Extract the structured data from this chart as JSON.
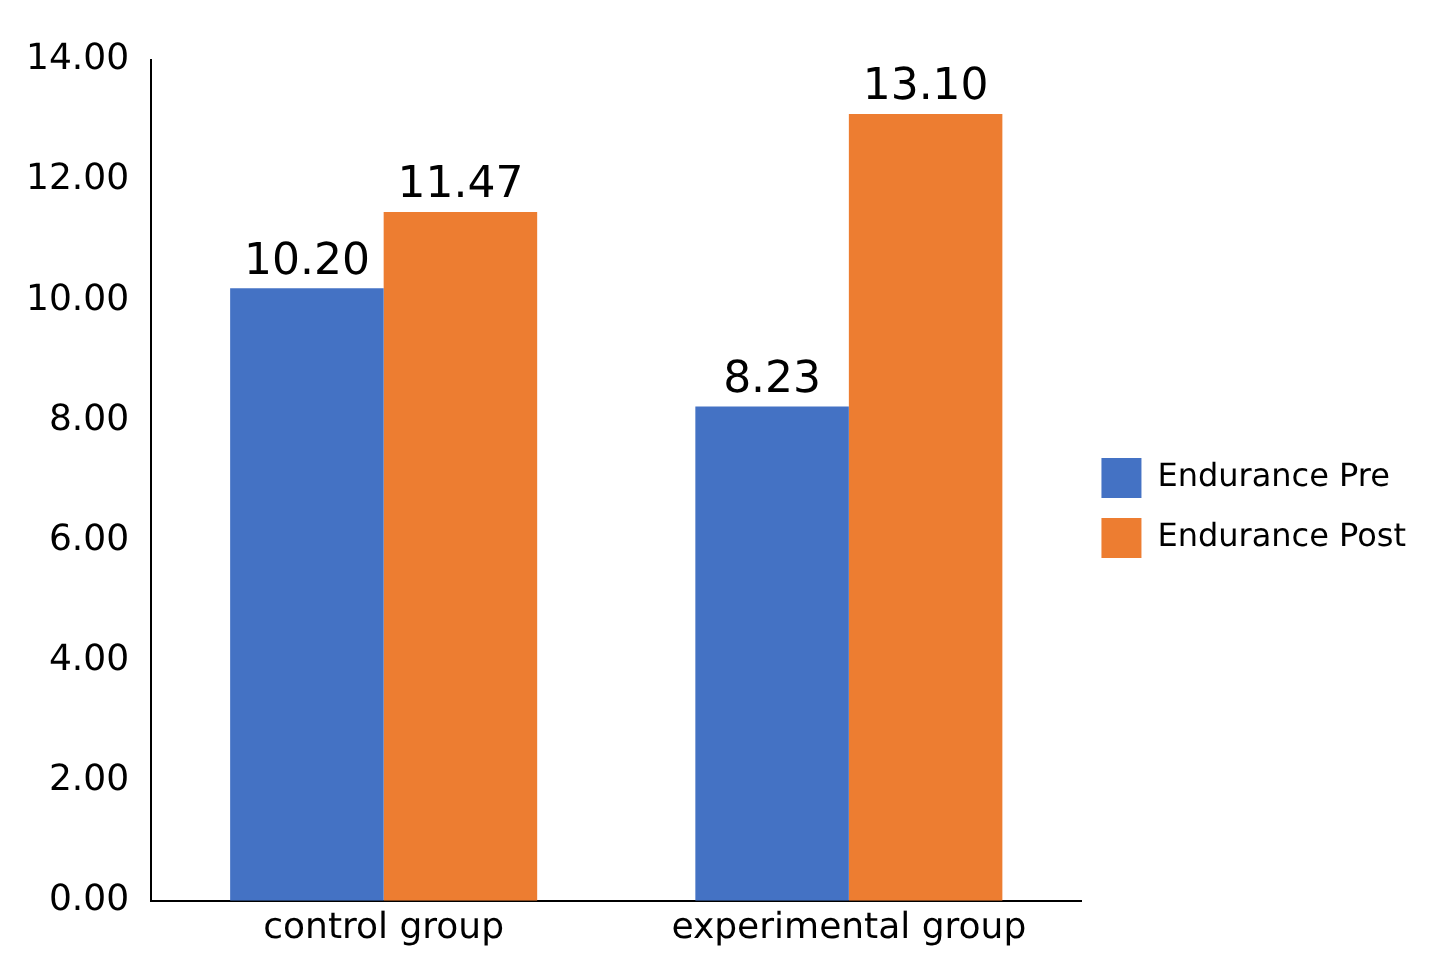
{
  "chart_data": {
    "type": "bar",
    "categories": [
      "control group",
      "experimental group"
    ],
    "series": [
      {
        "name": "Endurance Pre",
        "color": "#4472c4",
        "values": [
          10.2,
          8.23
        ]
      },
      {
        "name": "Endurance Post",
        "color": "#ed7d31",
        "values": [
          11.47,
          13.1
        ]
      }
    ],
    "value_labels": [
      [
        "10.20",
        "8.23"
      ],
      [
        "11.47",
        "13.10"
      ]
    ],
    "ylim": [
      0,
      14
    ],
    "yticks": [
      {
        "value": 0,
        "label": "0.00"
      },
      {
        "value": 2,
        "label": "2.00"
      },
      {
        "value": 4,
        "label": "4.00"
      },
      {
        "value": 6,
        "label": "6.00"
      },
      {
        "value": 8,
        "label": "8.00"
      },
      {
        "value": 10,
        "label": "10.00"
      },
      {
        "value": 12,
        "label": "12.00"
      },
      {
        "value": 14,
        "label": "14.00"
      }
    ],
    "grid": false,
    "legend": "right"
  }
}
